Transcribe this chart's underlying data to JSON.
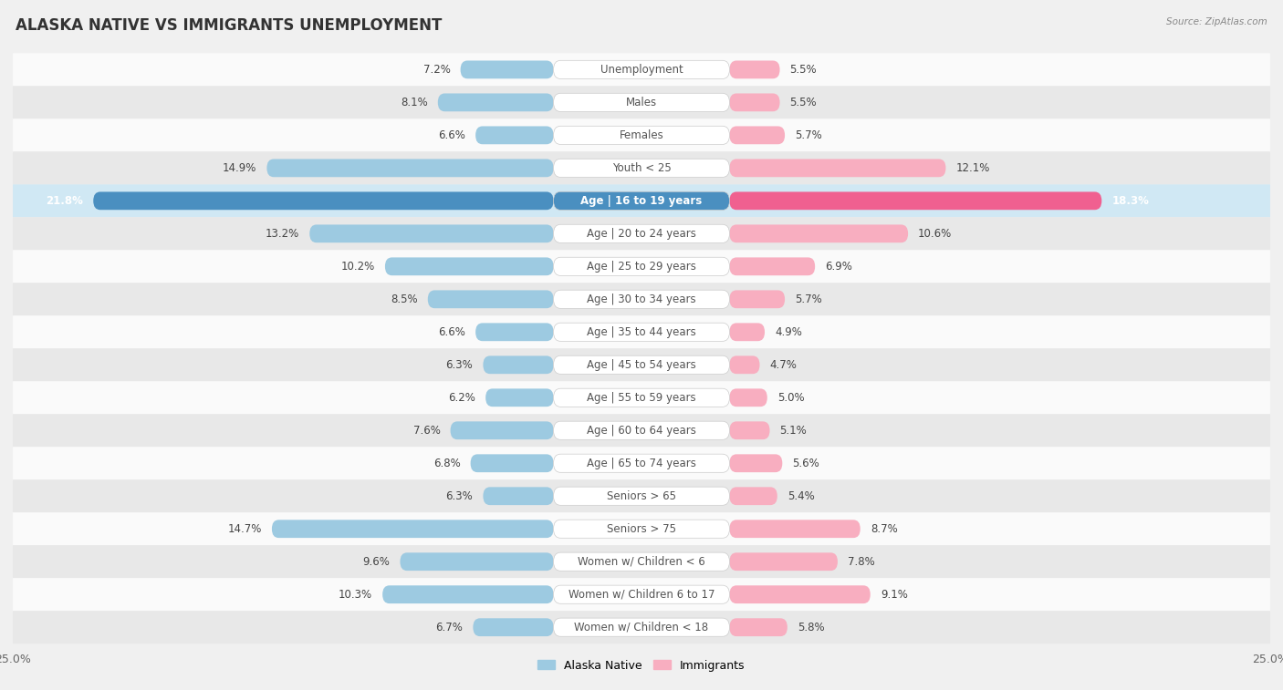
{
  "title": "ALASKA NATIVE VS IMMIGRANTS UNEMPLOYMENT",
  "source": "Source: ZipAtlas.com",
  "categories": [
    "Unemployment",
    "Males",
    "Females",
    "Youth < 25",
    "Age | 16 to 19 years",
    "Age | 20 to 24 years",
    "Age | 25 to 29 years",
    "Age | 30 to 34 years",
    "Age | 35 to 44 years",
    "Age | 45 to 54 years",
    "Age | 55 to 59 years",
    "Age | 60 to 64 years",
    "Age | 65 to 74 years",
    "Seniors > 65",
    "Seniors > 75",
    "Women w/ Children < 6",
    "Women w/ Children 6 to 17",
    "Women w/ Children < 18"
  ],
  "alaska_native": [
    7.2,
    8.1,
    6.6,
    14.9,
    21.8,
    13.2,
    10.2,
    8.5,
    6.6,
    6.3,
    6.2,
    7.6,
    6.8,
    6.3,
    14.7,
    9.6,
    10.3,
    6.7
  ],
  "immigrants": [
    5.5,
    5.5,
    5.7,
    12.1,
    18.3,
    10.6,
    6.9,
    5.7,
    4.9,
    4.7,
    5.0,
    5.1,
    5.6,
    5.4,
    8.7,
    7.8,
    9.1,
    5.8
  ],
  "alaska_color": "#9dcae1",
  "immigrants_color": "#f8aec0",
  "highlight_alaska_color": "#4a8fc0",
  "highlight_immigrants_color": "#f06090",
  "highlight_row": 4,
  "xlim": 25.0,
  "background_color": "#f0f0f0",
  "row_bg_light": "#fafafa",
  "row_bg_dark": "#e8e8e8",
  "row_bg_highlight": "#d0e8f4",
  "title_fontsize": 12,
  "label_fontsize": 8.5,
  "value_fontsize": 8.5,
  "legend_fontsize": 9,
  "bar_height": 0.55
}
